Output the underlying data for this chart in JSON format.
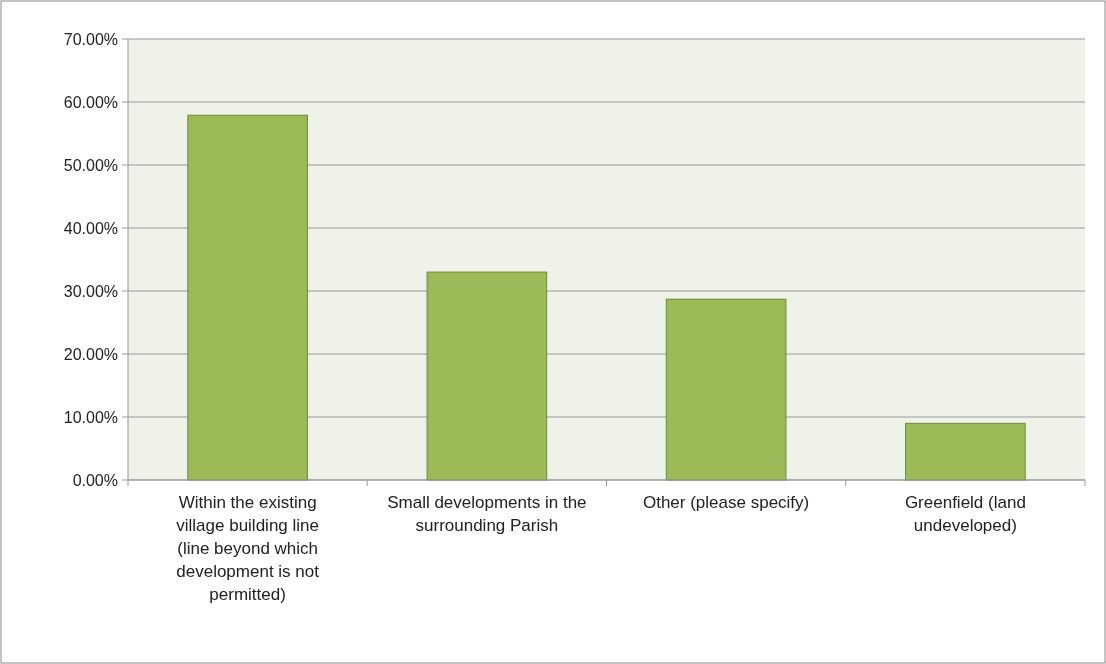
{
  "chart_data": {
    "type": "bar",
    "categories": [
      "Within  the existing village building line (line beyond which development is not permitted)",
      "Small developments in the surrounding Parish",
      "Other (please specify)",
      "Greenfield (land undeveloped)"
    ],
    "values": [
      57.9,
      33.0,
      28.7,
      9.0
    ],
    "color": "#9bbb59",
    "ylim": [
      0,
      70
    ],
    "yticks": [
      {
        "value": 0,
        "label": "0.00%"
      },
      {
        "value": 10,
        "label": "10.00%"
      },
      {
        "value": 20,
        "label": "20.00%"
      },
      {
        "value": 30,
        "label": "30.00%"
      },
      {
        "value": 40,
        "label": "40.00%"
      },
      {
        "value": 50,
        "label": "50.00%"
      },
      {
        "value": 60,
        "label": "60.00%"
      },
      {
        "value": 70,
        "label": "70.00%"
      }
    ],
    "grid": "y"
  }
}
